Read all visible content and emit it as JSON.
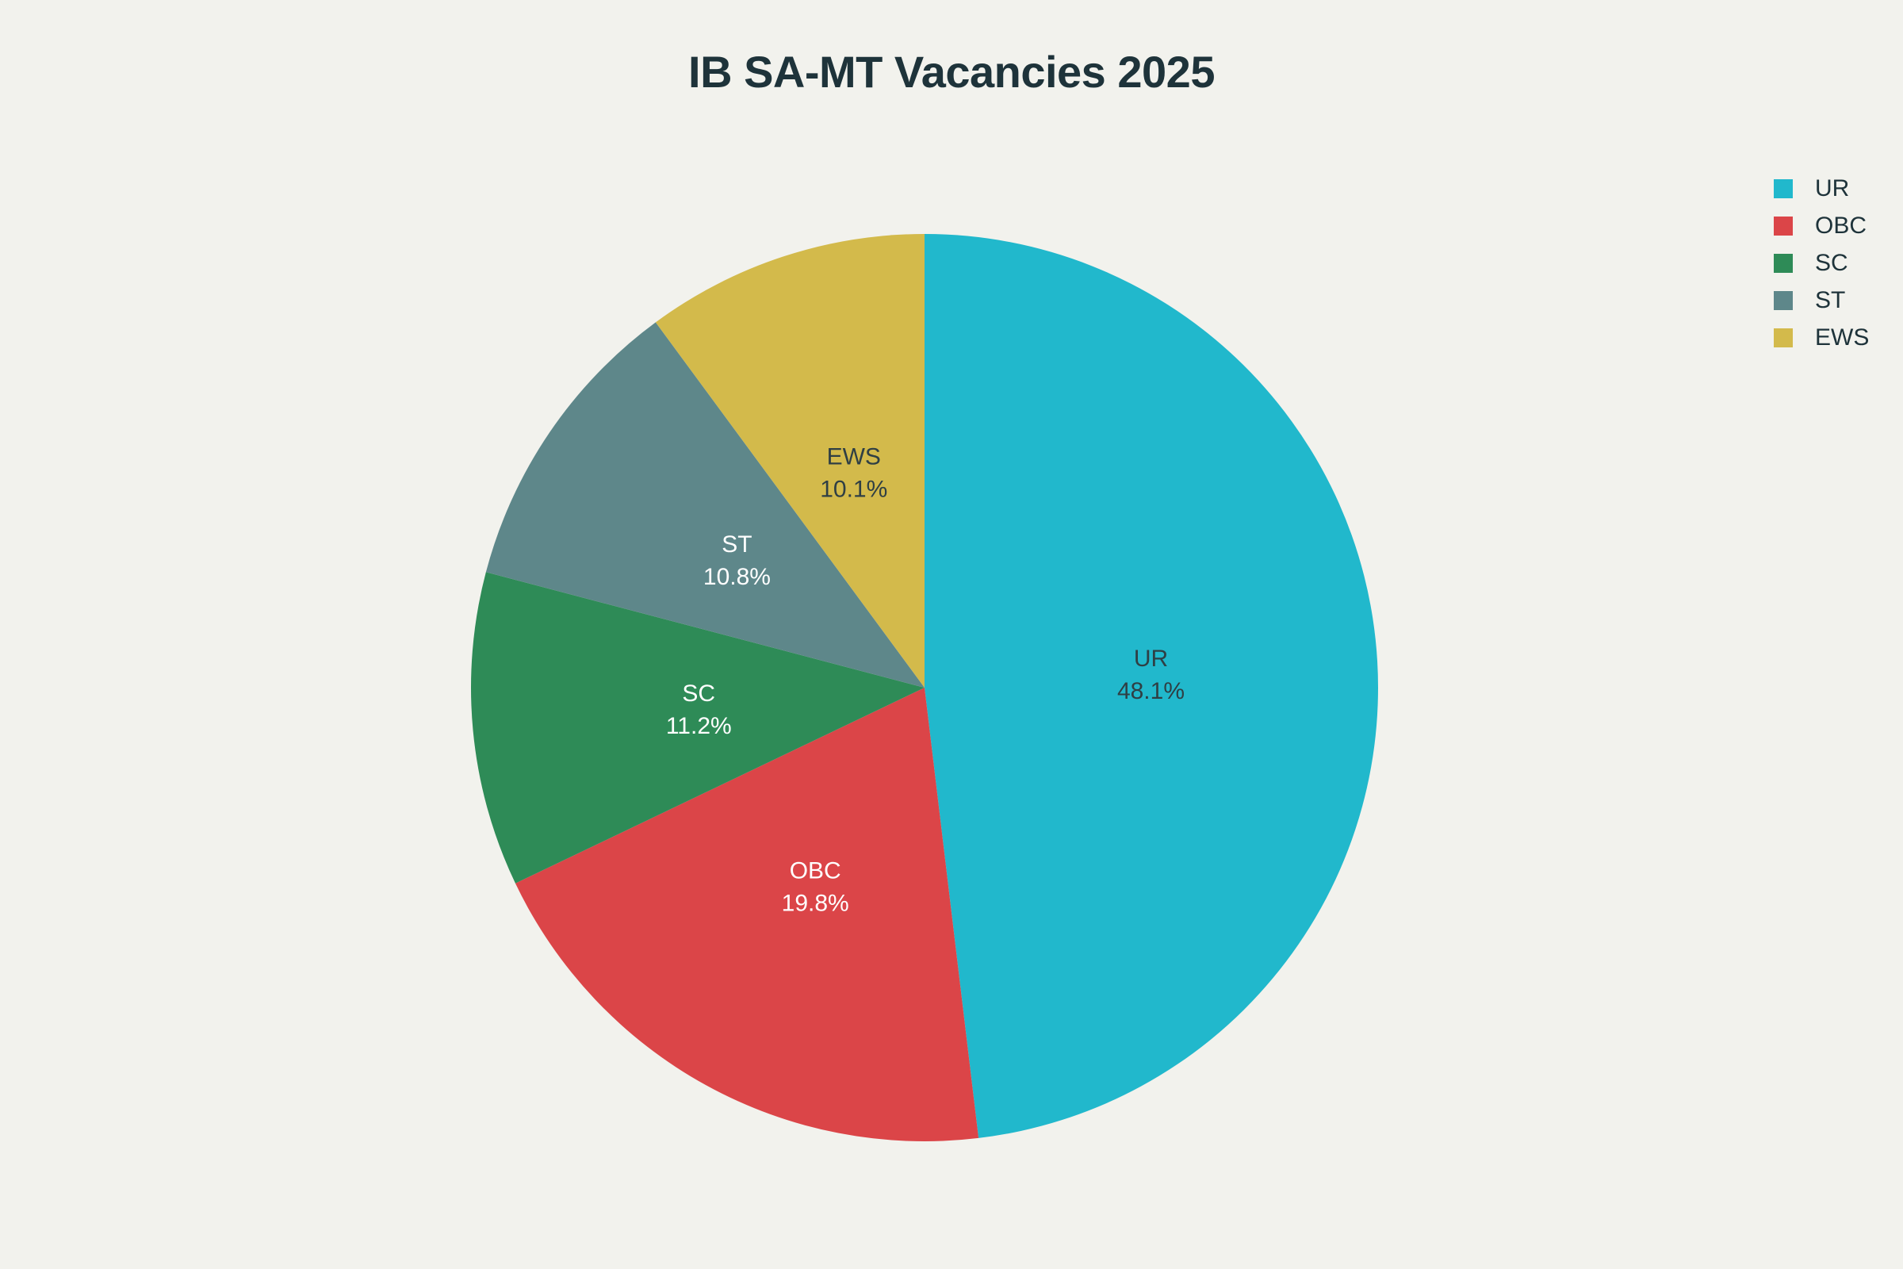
{
  "chart_data": {
    "type": "pie",
    "title": "IB SA-MT Vacancies 2025",
    "categories": [
      "UR",
      "OBC",
      "SC",
      "ST",
      "EWS"
    ],
    "values": [
      48.1,
      19.8,
      11.2,
      10.8,
      10.1
    ],
    "value_labels": [
      "48.1%",
      "19.8%",
      "11.2%",
      "10.8%",
      "10.1%"
    ],
    "colors": [
      "#21b8cc",
      "#db4548",
      "#2e8b57",
      "#5e878a",
      "#d3ba4b"
    ],
    "label_colors": [
      "#2f3f44",
      "#ffffff",
      "#ffffff",
      "#ffffff",
      "#2f3f44"
    ],
    "legend_position": "top-right",
    "start_angle": "12 o'clock",
    "direction": "clockwise"
  }
}
